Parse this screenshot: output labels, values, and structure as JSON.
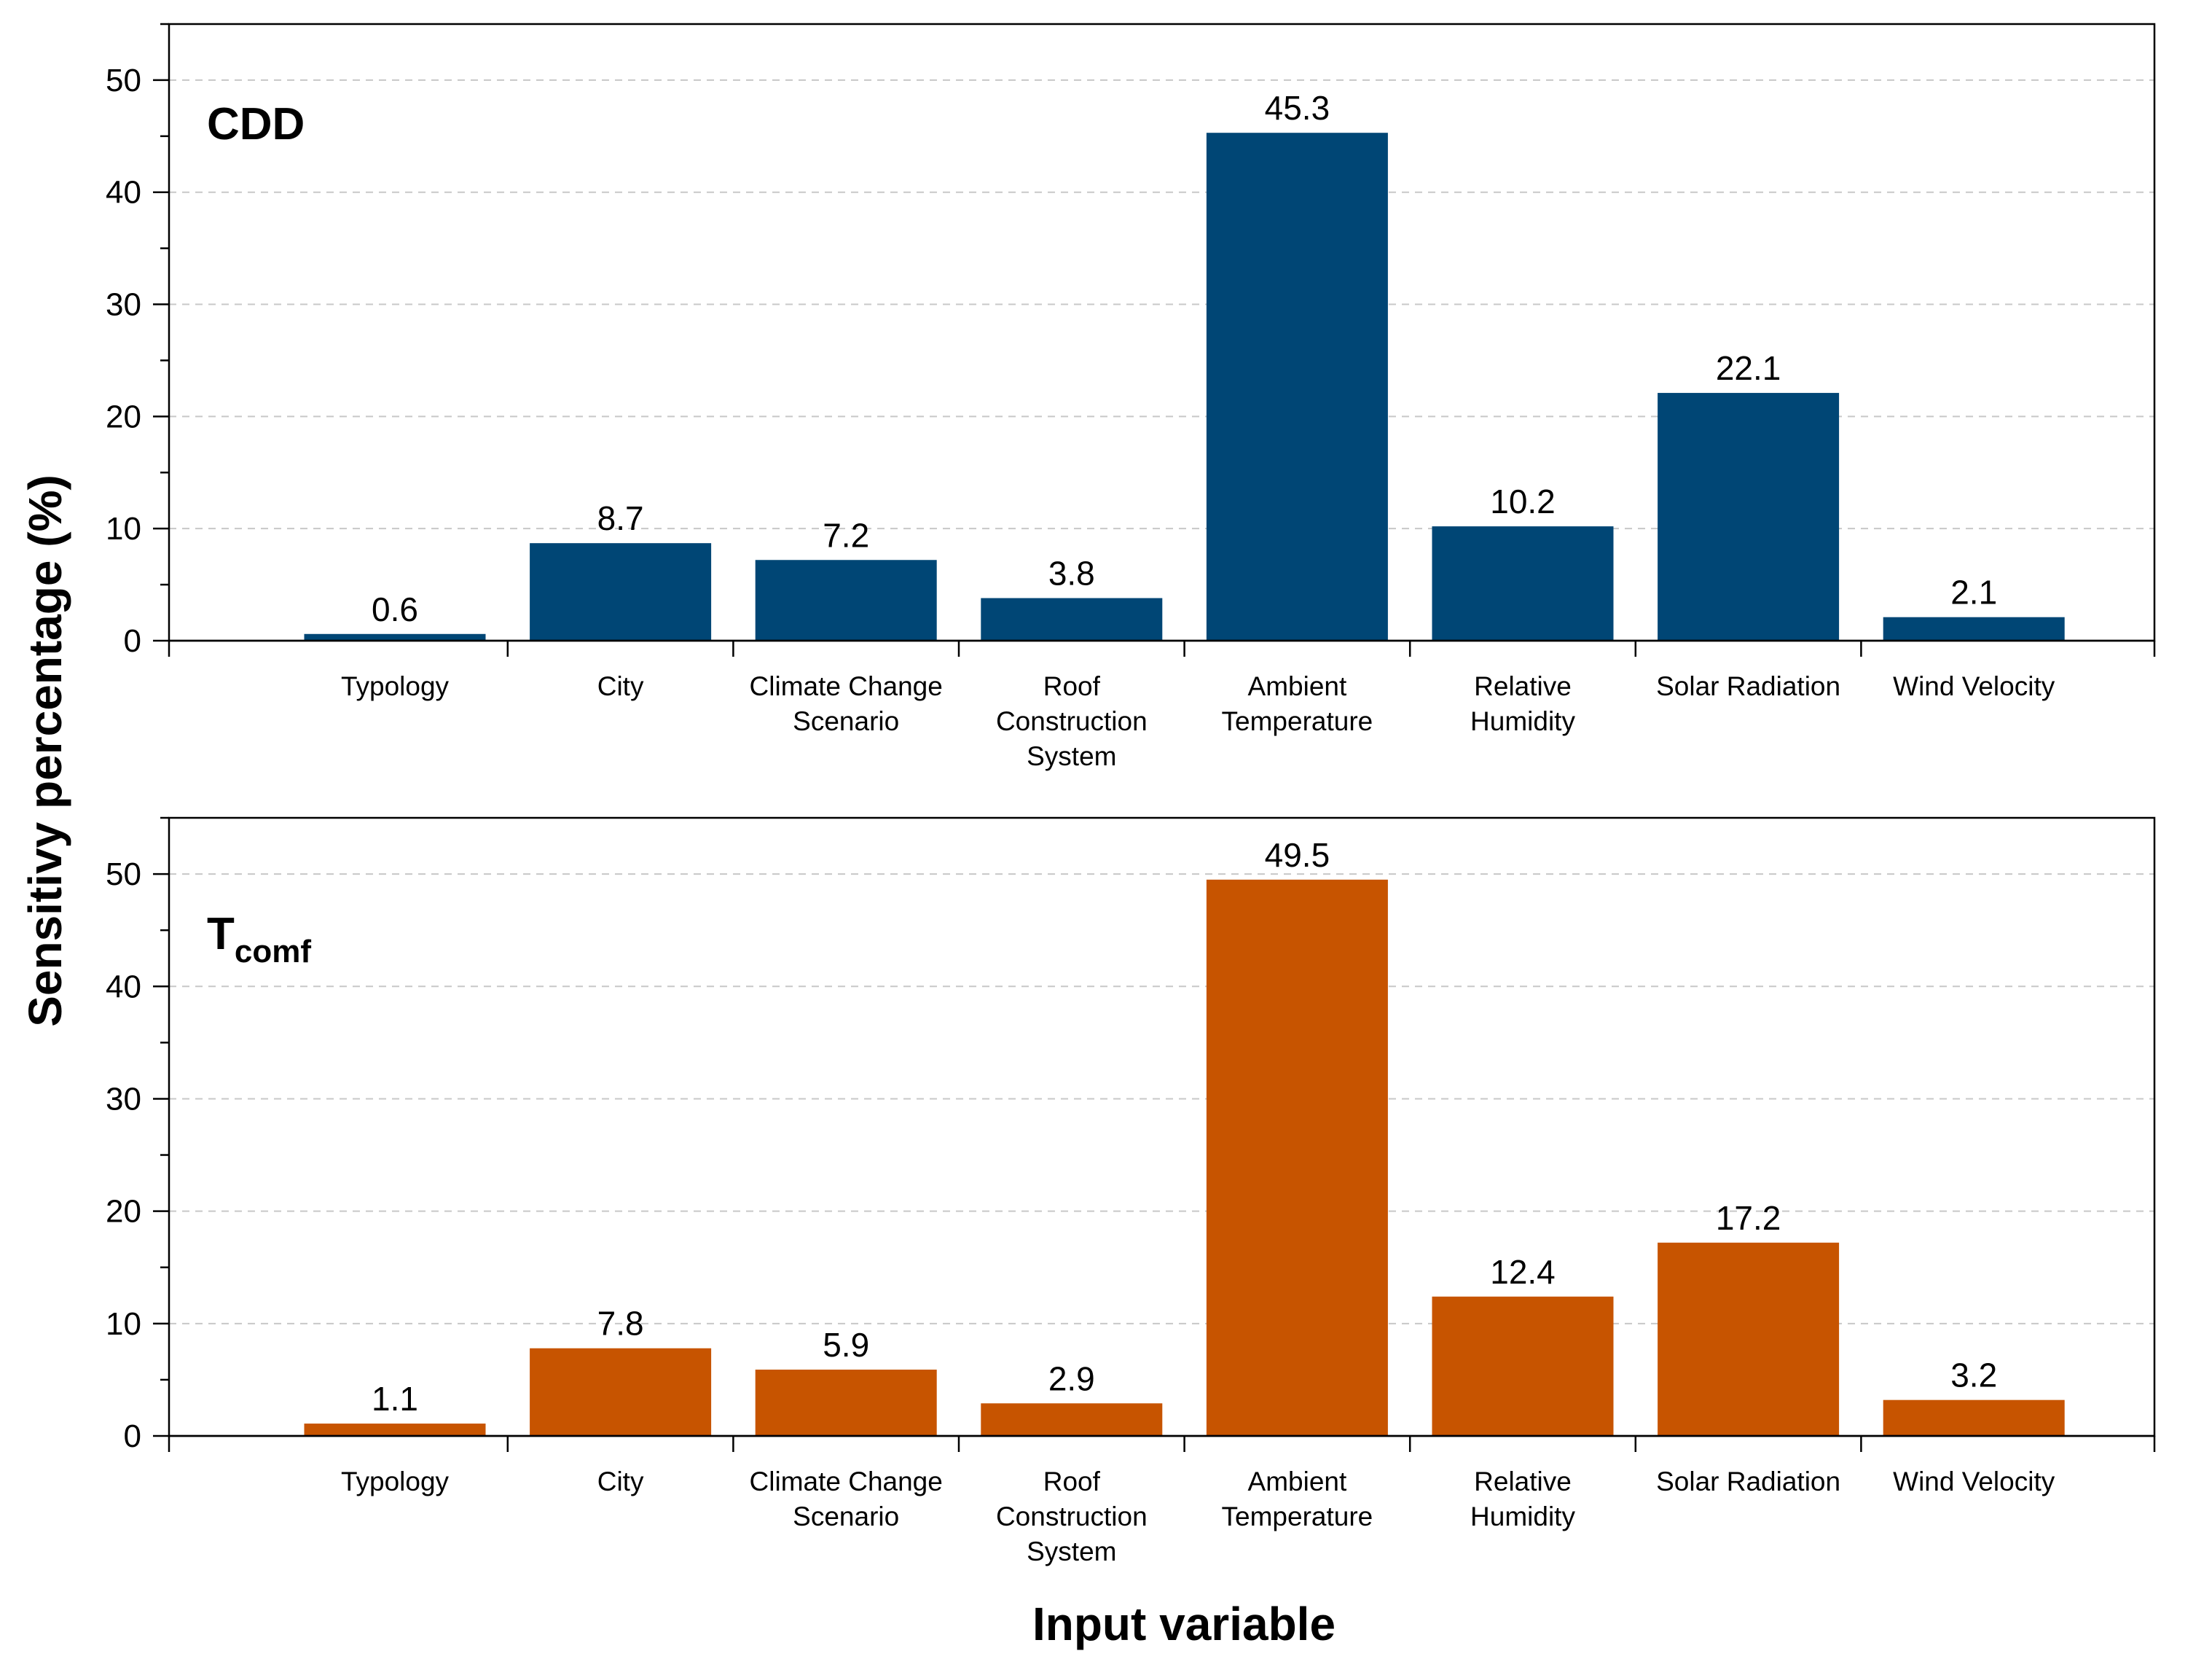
{
  "chart_data": [
    {
      "type": "bar",
      "title": "CDD",
      "title_subscript": "",
      "categories": [
        [
          "Typology"
        ],
        [
          "City"
        ],
        [
          "Climate Change",
          "Scenario"
        ],
        [
          "Roof",
          "Construction",
          "System"
        ],
        [
          "Ambient",
          "Temperature"
        ],
        [
          "Relative",
          "Humidity"
        ],
        [
          "Solar Radiation"
        ],
        [
          "Wind Velocity"
        ]
      ],
      "values": [
        0.6,
        8.7,
        7.2,
        3.8,
        45.3,
        10.2,
        22.1,
        2.1
      ],
      "value_labels": [
        "0.6",
        "8.7",
        "7.2",
        "3.8",
        "45.3",
        "10.2",
        "22.1",
        "2.1"
      ],
      "yticks": [
        0,
        10,
        20,
        30,
        40,
        50
      ],
      "ylim": [
        0,
        55
      ],
      "grid": true,
      "color": "#004675"
    },
    {
      "type": "bar",
      "title": "T",
      "title_subscript": "comf",
      "categories": [
        [
          "Typology"
        ],
        [
          "City"
        ],
        [
          "Climate Change",
          "Scenario"
        ],
        [
          "Roof",
          "Construction",
          "System"
        ],
        [
          "Ambient",
          "Temperature"
        ],
        [
          "Relative",
          "Humidity"
        ],
        [
          "Solar Radiation"
        ],
        [
          "Wind Velocity"
        ]
      ],
      "values": [
        1.1,
        7.8,
        5.9,
        2.9,
        49.5,
        12.4,
        17.2,
        3.2
      ],
      "value_labels": [
        "1.1",
        "7.8",
        "5.9",
        "2.9",
        "49.5",
        "12.4",
        "17.2",
        "3.2"
      ],
      "yticks": [
        0,
        10,
        20,
        30,
        40,
        50
      ],
      "ylim": [
        0,
        55
      ],
      "grid": true,
      "color": "#c75400"
    }
  ],
  "ylabel": "Sensitivy percentage (%)",
  "xlabel": "Input variable"
}
